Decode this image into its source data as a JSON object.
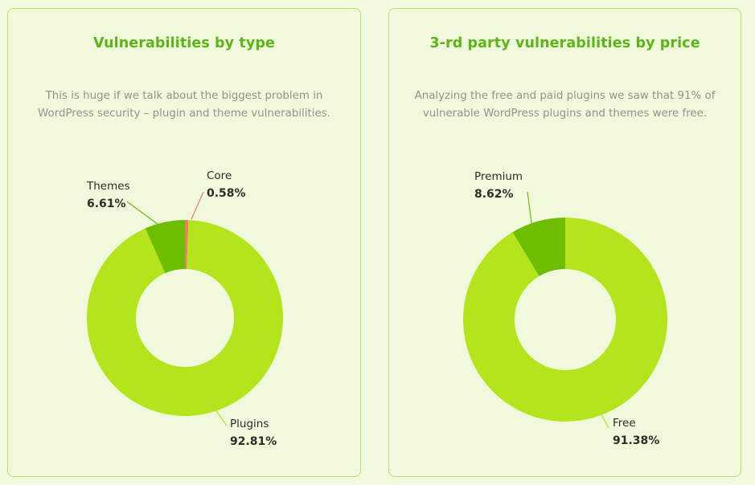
{
  "charts": [
    {
      "title": "Vulnerabilities by type",
      "description": "This is huge if we talk about the biggest problem in WordPress security – plugin and theme vulnerabilities."
    },
    {
      "title": "3-rd party vulnerabilities by price",
      "description": "Analyzing the free and paid plugins we saw that 91% of vulnerable WordPress plugins and themes were free."
    }
  ],
  "chart_data": [
    {
      "type": "pie",
      "title": "Vulnerabilities by type",
      "slices": [
        {
          "name": "Core",
          "value": 0.58,
          "display": "0.58%",
          "color": "#f07a63"
        },
        {
          "name": "Plugins",
          "value": 92.81,
          "display": "92.81%",
          "color": "#b3e41c"
        },
        {
          "name": "Themes",
          "value": 6.61,
          "display": "6.61%",
          "color": "#6dbd00"
        }
      ]
    },
    {
      "type": "pie",
      "title": "3-rd party vulnerabilities by price",
      "slices": [
        {
          "name": "Free",
          "value": 91.38,
          "display": "91.38%",
          "color": "#b3e41c"
        },
        {
          "name": "Premium",
          "value": 8.62,
          "display": "8.62%",
          "color": "#6dbd00"
        }
      ]
    }
  ]
}
